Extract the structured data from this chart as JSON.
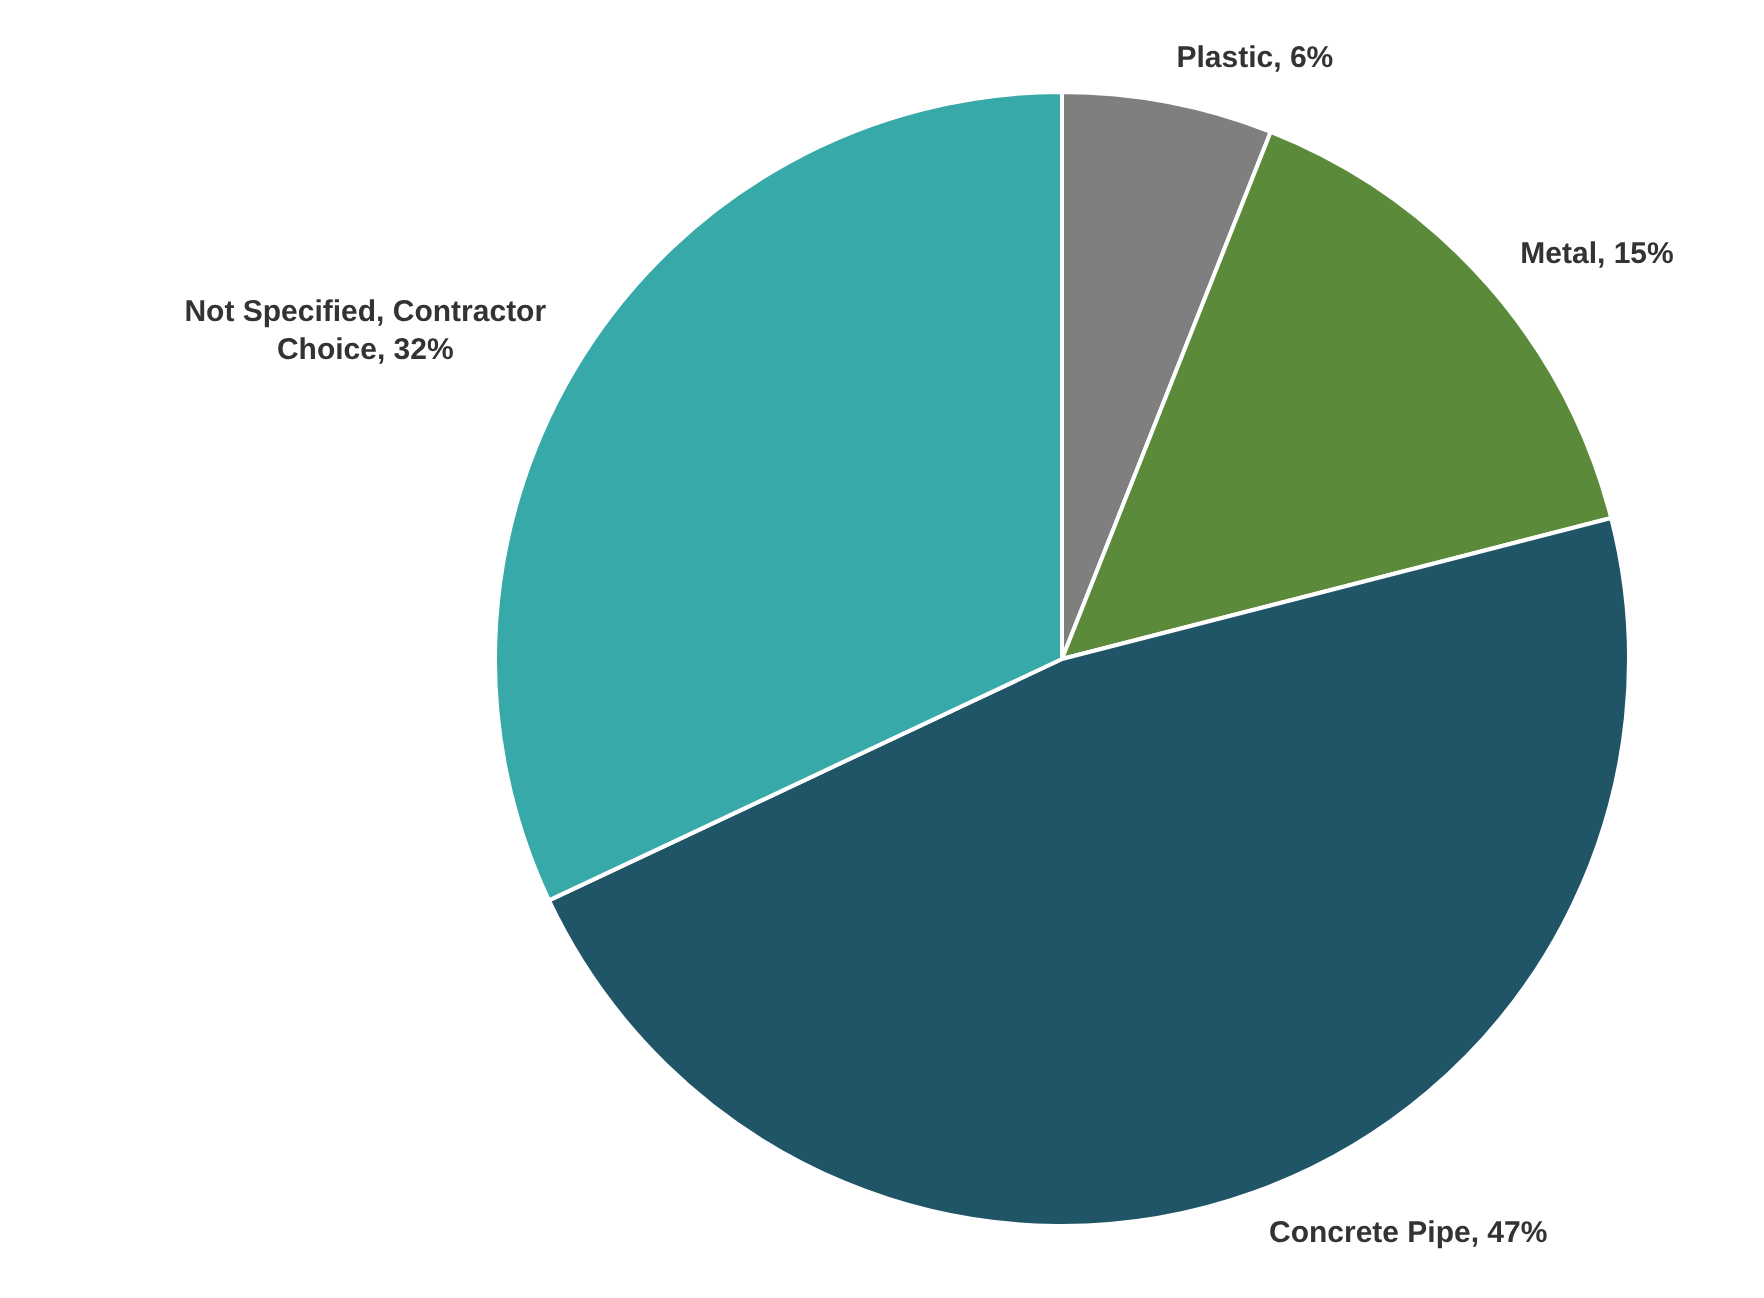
{
  "chart_data": {
    "type": "pie",
    "categories": [
      "Plastic",
      "Metal",
      "Concrete Pipe",
      "Not Specified, Contractor Choice"
    ],
    "values": [
      6,
      15,
      47,
      32
    ],
    "colors": [
      "#7f7f7f",
      "#5a8a3a",
      "#1f5566",
      "#36a9a8"
    ],
    "value_labels": [
      "6%",
      "15%",
      "47%",
      "32%"
    ]
  }
}
